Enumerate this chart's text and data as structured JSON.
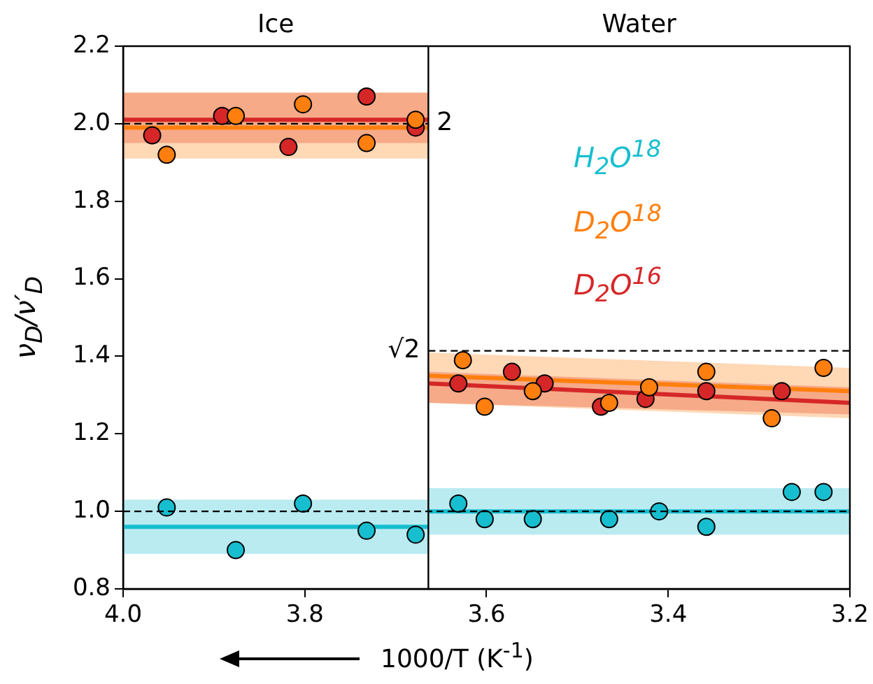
{
  "chart_data": {
    "type": "scatter",
    "xlabel": "1000/T (K$^{-1}$)",
    "ylabel": "ν$_{D}$/ν′$_{D}$",
    "xlim": [
      4.0,
      3.2
    ],
    "xticks": [
      {
        "value": 4,
        "label": "4.0"
      },
      3.8,
      3.6,
      3.4,
      3.2
    ],
    "ylim": [
      0.8,
      2.2
    ],
    "yticks": [
      0.8,
      {
        "value": 1,
        "label": "1.0"
      },
      1.2,
      1.4,
      1.6,
      1.8,
      {
        "value": 2,
        "label": "2.0"
      },
      2.2
    ],
    "legend": "top right",
    "series": [
      {
        "name": "H$_{2}$O$^{18}$",
        "marker": "circle",
        "color": "#17becf",
        "x": [
          3.952,
          3.876,
          3.802,
          3.732,
          3.678,
          3.631,
          3.602,
          3.549,
          3.465,
          3.41,
          3.358,
          3.264,
          3.229
        ],
        "values": [
          1.01,
          0.9,
          1.02,
          0.95,
          0.94,
          1.02,
          0.98,
          0.98,
          0.98,
          1.0,
          0.96,
          1.05,
          1.05
        ]
      },
      {
        "name": "D$_{2}$O$^{18}$",
        "marker": "circle",
        "color": "#ff7f0e",
        "x": [
          3.952,
          3.876,
          3.802,
          3.732,
          3.678,
          3.626,
          3.602,
          3.549,
          3.465,
          3.421,
          3.358,
          3.286,
          3.229
        ],
        "values": [
          1.92,
          2.02,
          2.05,
          1.95,
          2.01,
          1.39,
          1.27,
          1.31,
          1.28,
          1.32,
          1.36,
          1.24,
          1.37
        ]
      },
      {
        "name": "D$_{2}$O$^{16}$",
        "marker": "circle",
        "color": "#d62728",
        "x": [
          3.968,
          3.891,
          3.818,
          3.732,
          3.678,
          3.631,
          3.572,
          3.536,
          3.474,
          3.425,
          3.358,
          3.275
        ],
        "values": [
          1.97,
          2.02,
          1.94,
          2.07,
          1.99,
          1.33,
          1.36,
          1.33,
          1.27,
          1.29,
          1.31,
          1.31
        ]
      },
      {
        "type": "line",
        "marker": "none",
        "color": "#17becf",
        "x": [
          4.0,
          3.664
        ],
        "values": [
          0.96,
          0.96
        ],
        "lower": [
          0.89,
          0.89
        ],
        "upper": [
          1.03,
          1.03
        ]
      },
      {
        "type": "line",
        "marker": "none",
        "color": "#ff7f0e",
        "x": [
          4.0,
          3.664
        ],
        "values": [
          1.99,
          1.99
        ],
        "lower": [
          1.91,
          1.91
        ],
        "upper": [
          2.08,
          2.08
        ]
      },
      {
        "type": "line",
        "marker": "none",
        "color": "#d62728",
        "x": [
          4.0,
          3.664
        ],
        "values": [
          2.01,
          2.01
        ],
        "lower": [
          1.95,
          1.95
        ],
        "upper": [
          2.08,
          2.08
        ]
      },
      {
        "type": "line",
        "marker": "none",
        "color": "#17becf",
        "x": [
          3.664,
          3.2
        ],
        "values": [
          1.0,
          1.0
        ],
        "lower": [
          0.94,
          0.94
        ],
        "upper": [
          1.06,
          1.06
        ]
      },
      {
        "type": "line",
        "marker": "none",
        "color": "#ff7f0e",
        "x": [
          3.664,
          3.2
        ],
        "values": [
          1.35,
          1.31
        ],
        "lower": [
          1.28,
          1.24
        ],
        "upper": [
          1.41,
          1.37
        ]
      },
      {
        "type": "line",
        "marker": "none",
        "color": "#d62728",
        "x": [
          3.664,
          3.2
        ],
        "values": [
          1.33,
          1.28
        ],
        "lower": [
          1.28,
          1.25
        ],
        "upper": [
          1.36,
          1.32
        ]
      },
      {
        "name": "2",
        "type": "line",
        "marker": "none",
        "color": "#000000",
        "line_style": "dashed",
        "x": [
          4.0,
          3.664
        ],
        "values": [
          2,
          2
        ]
      },
      {
        "name": "√2",
        "type": "line",
        "marker": "none",
        "color": "#000000",
        "line_style": "dashed",
        "x": [
          3.664,
          3.2
        ],
        "values": [
          1.414,
          1.414
        ]
      }
    ],
    "ref_lines": [
      {
        "axis": "y",
        "value": 1,
        "color": "#000000",
        "line_style": "dashed"
      },
      {
        "axis": "x",
        "value": 3.664,
        "color": "#000000",
        "line_style": "solid"
      }
    ],
    "annotations": [
      "Ice",
      "Water"
    ]
  }
}
